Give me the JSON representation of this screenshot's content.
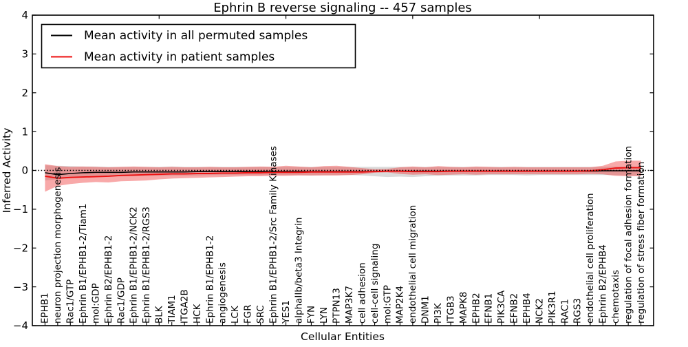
{
  "chart_data": {
    "type": "line",
    "title": "Ephrin B reverse signaling -- 457 samples",
    "xlabel": "Cellular Entities",
    "ylabel": "Inferred Activity",
    "ylim": [
      -4,
      4
    ],
    "yticks": [
      -4,
      -3,
      -2,
      -1,
      0,
      1,
      2,
      3,
      4
    ],
    "top_axis_ticks": [
      10,
      20,
      30,
      40
    ],
    "grid": false,
    "legend_position": "upper left",
    "reference_line": {
      "y": 0,
      "style": "dotted",
      "color": "#000000"
    },
    "categories": [
      "EPHB1",
      "neuron projection morphogenesis",
      "Rac1/GTP",
      "Ephrin B1/EPHB1-2/Tiam1",
      "mol:GDP",
      "Ephrin B2/EPHB1-2",
      "Rac1/GDP",
      "Ephrin B1/EPHB1-2/NCK2",
      "Ephrin B1/EPHB1-2/RGS3",
      "BLK",
      "TIAM1",
      "ITGA2B",
      "HCK",
      "Ephrin B1/EPHB1-2",
      "angiogenesis",
      "LCK",
      "FGR",
      "SRC",
      "Ephrin B1/EPHB1-2/Src Family Kinases",
      "YES1",
      "alphaIIb/beta3 Integrin",
      "FYN",
      "LYN",
      "PTPN13",
      "MAP3K7",
      "cell adhesion",
      "cell-cell signaling",
      "mol:GTP",
      "MAP2K4",
      "endothelial cell migration",
      "DNM1",
      "PI3K",
      "ITGB3",
      "MAPK8",
      "EPHB2",
      "EFNB1",
      "PIK3CA",
      "EFNB2",
      "EPHB4",
      "NCK2",
      "PIK3R1",
      "RAC1",
      "RGS3",
      "endothelial cell proliferation",
      "Ephrin B2/EPHB4",
      "chemotaxis",
      "regulation of focal adhesion formation",
      "regulation of stress fiber formation"
    ],
    "series": [
      {
        "name": "Mean activity in all permuted samples",
        "color": "#000000",
        "style": "solid",
        "values": [
          -0.06,
          -0.11,
          -0.08,
          -0.06,
          -0.05,
          -0.05,
          -0.05,
          -0.04,
          -0.04,
          -0.04,
          -0.04,
          -0.04,
          -0.03,
          -0.03,
          -0.03,
          -0.03,
          -0.03,
          -0.03,
          -0.03,
          -0.03,
          -0.03,
          -0.03,
          -0.03,
          -0.03,
          -0.03,
          -0.03,
          -0.03,
          -0.02,
          -0.02,
          -0.02,
          -0.02,
          -0.02,
          -0.02,
          -0.02,
          -0.02,
          -0.02,
          -0.02,
          -0.02,
          -0.02,
          -0.02,
          -0.02,
          -0.02,
          -0.02,
          -0.02,
          -0.01,
          -0.01,
          -0.01,
          -0.01
        ]
      },
      {
        "name": "Mean activity in patient samples",
        "color": "#ee1111",
        "style": "solid",
        "values": [
          -0.15,
          -0.2,
          -0.18,
          -0.17,
          -0.16,
          -0.15,
          -0.13,
          -0.12,
          -0.11,
          -0.1,
          -0.09,
          -0.09,
          -0.08,
          -0.08,
          -0.07,
          -0.07,
          -0.06,
          -0.06,
          -0.05,
          -0.05,
          -0.05,
          -0.04,
          -0.04,
          -0.04,
          -0.04,
          -0.04,
          -0.03,
          -0.02,
          -0.02,
          -0.03,
          -0.03,
          -0.03,
          -0.02,
          -0.02,
          -0.02,
          -0.02,
          -0.02,
          -0.02,
          -0.02,
          -0.02,
          -0.02,
          -0.02,
          -0.02,
          -0.01,
          0.02,
          0.06,
          0.07,
          0.07
        ]
      }
    ],
    "bands": [
      {
        "name": "permuted-activity-range",
        "color": "#d8d8d8",
        "opacity": 0.95,
        "upper": [
          0.13,
          0.12,
          0.11,
          0.1,
          0.1,
          0.09,
          0.09,
          0.09,
          0.09,
          0.09,
          0.1,
          0.09,
          0.09,
          0.09,
          0.09,
          0.09,
          0.09,
          0.09,
          0.09,
          0.09,
          0.09,
          0.09,
          0.09,
          0.09,
          0.09,
          0.09,
          0.09,
          0.09,
          0.09,
          0.09,
          0.09,
          0.09,
          0.09,
          0.09,
          0.09,
          0.09,
          0.09,
          0.09,
          0.09,
          0.09,
          0.09,
          0.09,
          0.09,
          0.09,
          0.09,
          0.1,
          0.1,
          0.1
        ],
        "lower": [
          -0.26,
          -0.23,
          -0.2,
          -0.18,
          -0.17,
          -0.16,
          -0.15,
          -0.15,
          -0.14,
          -0.14,
          -0.13,
          -0.13,
          -0.13,
          -0.12,
          -0.12,
          -0.12,
          -0.12,
          -0.12,
          -0.12,
          -0.12,
          -0.12,
          -0.13,
          -0.12,
          -0.12,
          -0.12,
          -0.13,
          -0.15,
          -0.17,
          -0.16,
          -0.17,
          -0.15,
          -0.14,
          -0.13,
          -0.13,
          -0.13,
          -0.12,
          -0.12,
          -0.12,
          -0.13,
          -0.12,
          -0.12,
          -0.12,
          -0.12,
          -0.12,
          -0.12,
          -0.12,
          -0.13,
          -0.13
        ]
      },
      {
        "name": "patient-activity-range",
        "color": "#ef4040",
        "opacity": 0.45,
        "upper": [
          0.16,
          0.11,
          0.09,
          0.1,
          0.09,
          0.08,
          0.09,
          0.1,
          0.09,
          0.08,
          0.09,
          0.08,
          0.08,
          0.09,
          0.08,
          0.08,
          0.09,
          0.1,
          0.09,
          0.12,
          0.1,
          0.08,
          0.11,
          0.12,
          0.09,
          0.06,
          0.03,
          0.04,
          0.08,
          0.1,
          0.08,
          0.11,
          0.09,
          0.08,
          0.1,
          0.09,
          0.08,
          0.09,
          0.08,
          0.08,
          0.08,
          0.08,
          0.08,
          0.08,
          0.12,
          0.23,
          0.25,
          0.25
        ],
        "lower": [
          -0.55,
          -0.4,
          -0.35,
          -0.32,
          -0.3,
          -0.31,
          -0.28,
          -0.27,
          -0.26,
          -0.23,
          -0.21,
          -0.2,
          -0.19,
          -0.18,
          -0.17,
          -0.16,
          -0.15,
          -0.15,
          -0.14,
          -0.14,
          -0.13,
          -0.13,
          -0.13,
          -0.13,
          -0.12,
          -0.1,
          -0.06,
          -0.05,
          -0.09,
          -0.11,
          -0.1,
          -0.12,
          -0.11,
          -0.1,
          -0.11,
          -0.1,
          -0.1,
          -0.1,
          -0.1,
          -0.1,
          -0.1,
          -0.1,
          -0.1,
          -0.09,
          -0.1,
          -0.14,
          -0.15,
          -0.15
        ]
      }
    ]
  }
}
